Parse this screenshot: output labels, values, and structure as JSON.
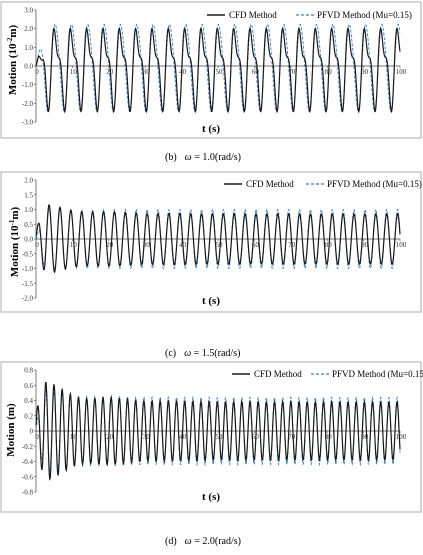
{
  "charts": [
    {
      "caption_label": "(b)",
      "caption_omega": "ω",
      "caption_value": " = 1.0(rad/s)",
      "xlabel": "t (s)",
      "ylabel": "Motion (10",
      "ylabel_exp": "-2",
      "ylabel_unit": "m)",
      "legend": [
        "CFD Method",
        "PFVD Method (Mu=0.15)"
      ],
      "x_ticks": [
        "0",
        "10",
        "20",
        "30",
        "40",
        "50",
        "60",
        "70",
        "80",
        "90",
        "100"
      ],
      "y_ticks": [
        "3.0",
        "2.0",
        "1.0",
        "0.0",
        "-1.0",
        "-2.0",
        "-3.0"
      ]
    },
    {
      "caption_label": "(c)",
      "caption_omega": "ω",
      "caption_value": " = 1.5(rad/s)",
      "xlabel": "t (s)",
      "ylabel": "Motion (10",
      "ylabel_exp": "-1",
      "ylabel_unit": "m)",
      "legend": [
        "CFD Method",
        "PFVD Method (Mu=0.15)"
      ],
      "x_ticks": [
        "0",
        "10",
        "20",
        "30",
        "40",
        "50",
        "60",
        "70",
        "80",
        "90",
        "100"
      ],
      "y_ticks": [
        "2.0",
        "1.5",
        "1.0",
        "0.5",
        "0.0",
        "-0.5",
        "-1.0",
        "-1.5",
        "-2.0"
      ]
    },
    {
      "caption_label": "(d)",
      "caption_omega": "ω",
      "caption_value": " = 2.0(rad/s)",
      "xlabel": "t (s)",
      "ylabel": "Motion (m)",
      "ylabel_exp": "",
      "ylabel_unit": "",
      "legend": [
        "CFD Method",
        "PFVD Method (Mu=0.15)"
      ],
      "x_ticks": [
        "0",
        "10",
        "20",
        "30",
        "40",
        "50",
        "60",
        "70",
        "80",
        "90",
        "100"
      ],
      "y_ticks": [
        "0.8",
        "0.6",
        "0.4",
        "0.2",
        "0",
        "-0.2",
        "-0.4",
        "-0.6",
        "-0.8"
      ]
    }
  ],
  "chart_data": [
    {
      "type": "line",
      "xlim": [
        0,
        100
      ],
      "ylim": [
        -3,
        3
      ],
      "series": [
        {
          "name": "CFD Method",
          "color": "#1a1a1a",
          "style": "solid",
          "omega": 1.0,
          "amp": 1.8,
          "harmonic": 0.45,
          "transient": 0.0
        },
        {
          "name": "PFVD Method (Mu=0.15)",
          "color": "#3a7fc4",
          "style": "dashed",
          "omega": 1.0,
          "amp": 2.3,
          "harmonic": 0.1,
          "transient": 0.0
        }
      ]
    },
    {
      "type": "line",
      "xlim": [
        0,
        100
      ],
      "ylim": [
        -2,
        2
      ],
      "series": [
        {
          "name": "CFD Method",
          "color": "#1a1a1a",
          "style": "solid",
          "omega": 1.5,
          "amp": 0.85,
          "harmonic": 0.0,
          "transient": 0.3
        },
        {
          "name": "PFVD Method (Mu=0.15)",
          "color": "#3a7fc4",
          "style": "dashed",
          "omega": 1.5,
          "amp": 1.0,
          "harmonic": 0.0,
          "transient": 0.0
        }
      ]
    },
    {
      "type": "line",
      "xlim": [
        0,
        100
      ],
      "ylim": [
        -0.8,
        0.8
      ],
      "series": [
        {
          "name": "CFD Method",
          "color": "#1a1a1a",
          "style": "solid",
          "omega": 2.0,
          "amp": 0.38,
          "harmonic": 0.0,
          "transient": 0.25
        },
        {
          "name": "PFVD Method (Mu=0.15)",
          "color": "#3a7fc4",
          "style": "dashed",
          "omega": 2.0,
          "amp": 0.44,
          "harmonic": 0.0,
          "transient": 0.08
        }
      ]
    }
  ]
}
